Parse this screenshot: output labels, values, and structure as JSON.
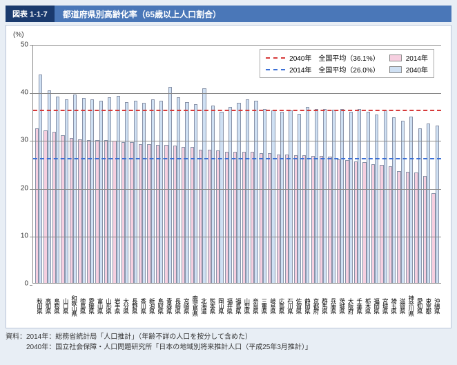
{
  "header": {
    "tag": "図表 1-1-7",
    "title": "都道府県別高齢化率（65歳以上人口割合）"
  },
  "chart": {
    "type": "bar",
    "y_unit": "(%)",
    "ylim": [
      0,
      50
    ],
    "ytick_step": 10,
    "label_fontsize": 10,
    "background_color": "#ffffff",
    "grid_color": "#888888",
    "bar_border": "#8892a8",
    "colors": {
      "y2014": "#f6cfe0",
      "y2040": "#cfe0f3"
    },
    "reference_lines": [
      {
        "label": "2040年　全国平均（36.1%）",
        "value": 36.1,
        "color": "#d63a3a"
      },
      {
        "label": "2014年　全国平均（26.0%）",
        "value": 26.0,
        "color": "#3a6fd6"
      }
    ],
    "series_labels": {
      "y2014": "2014年",
      "y2040": "2040年"
    },
    "categories": [
      "秋田県",
      "高知県",
      "島根県",
      "山口県",
      "和歌山県",
      "徳島県",
      "愛媛県",
      "富山県",
      "山形県",
      "岩手県",
      "大分県",
      "長野県",
      "香川県",
      "新潟県",
      "鳥取県",
      "青森県",
      "長崎県",
      "宮崎県",
      "鹿児島県",
      "北海道",
      "熊本県",
      "岡山県",
      "福井県",
      "福島県",
      "山梨県",
      "奈良県",
      "三重県",
      "岐阜県",
      "広島県",
      "石川県",
      "佐賀県",
      "静岡県",
      "京都府",
      "群馬県",
      "兵庫県",
      "茨城県",
      "大阪府",
      "千葉県",
      "栃木県",
      "福岡県",
      "宮城県",
      "埼玉県",
      "滋賀県",
      "神奈川県",
      "愛知県",
      "東京都",
      "沖縄県"
    ],
    "values": {
      "y2014": [
        32.5,
        32.0,
        31.8,
        31.0,
        30.5,
        30.2,
        30.0,
        30.0,
        30.0,
        29.8,
        29.6,
        29.5,
        29.2,
        29.1,
        29.0,
        29.0,
        28.8,
        28.5,
        28.5,
        28.0,
        28.0,
        27.8,
        27.6,
        27.5,
        27.5,
        27.5,
        27.3,
        27.2,
        27.0,
        27.0,
        26.8,
        26.8,
        26.7,
        26.7,
        26.5,
        26.0,
        25.8,
        25.5,
        25.3,
        25.0,
        24.8,
        24.5,
        23.5,
        23.3,
        23.2,
        22.5,
        18.8
      ],
      "y2040": [
        43.8,
        40.5,
        39.2,
        38.5,
        39.5,
        38.8,
        38.5,
        38.2,
        39.0,
        39.3,
        38.0,
        38.2,
        37.8,
        38.5,
        38.3,
        41.2,
        39.0,
        38.0,
        37.5,
        40.8,
        37.2,
        36.0,
        37.0,
        37.8,
        38.5,
        38.3,
        36.5,
        36.2,
        36.0,
        36.2,
        35.5,
        37.0,
        36.5,
        36.5,
        36.4,
        36.5,
        36.0,
        36.5,
        36.0,
        35.3,
        36.2,
        34.8,
        34.0,
        35.0,
        32.5,
        33.5,
        33.0
      ]
    }
  },
  "footnote": {
    "line1": "資料：2014年：総務省統計局「人口推計」（年齢不詳の人口を按分して含めた）",
    "line2": "　　　2040年：国立社会保障・人口問題研究所「日本の地域別将来推計人口（平成25年3月推計）」"
  }
}
